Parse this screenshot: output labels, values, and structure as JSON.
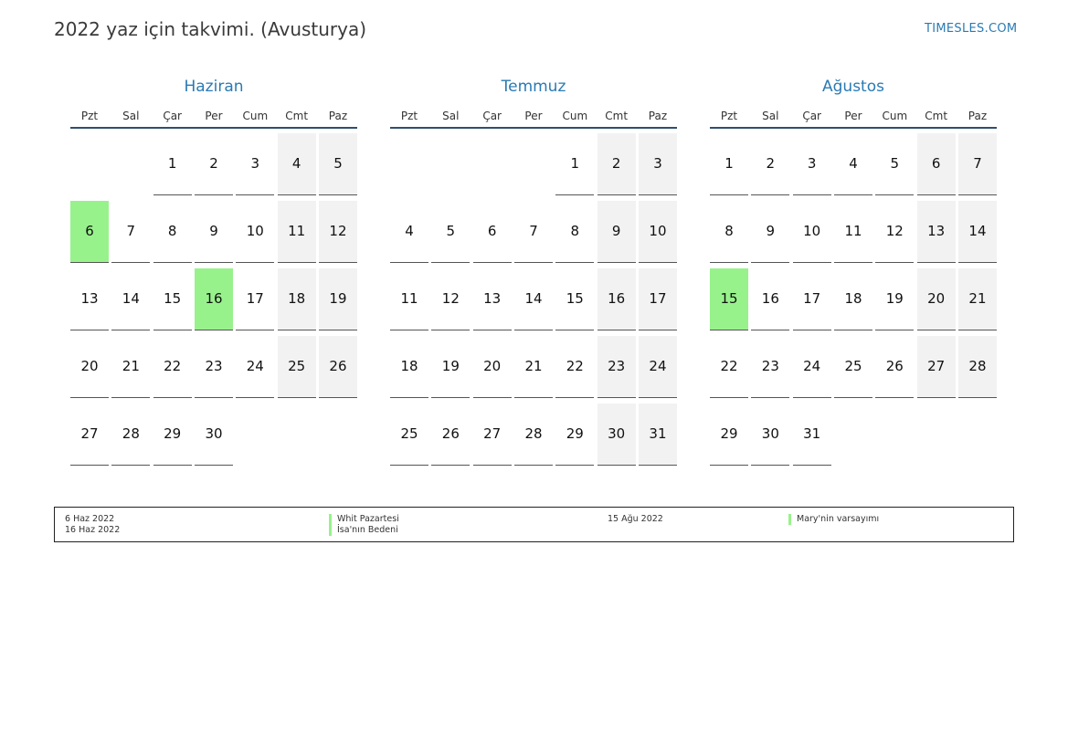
{
  "header": {
    "title": "2022 yaz için takvimi. (Avusturya)",
    "brand": "TIMESLES.COM"
  },
  "colors": {
    "accent": "#2a7ab3",
    "holiday": "#98f28c",
    "weekend": "#f2f2f2",
    "rule": "#2f4f6f"
  },
  "weekdays": [
    "Pzt",
    "Sal",
    "Çar",
    "Per",
    "Cum",
    "Cmt",
    "Paz"
  ],
  "months": [
    {
      "name": "Haziran",
      "start_weekday": 2,
      "days": 30,
      "holidays": [
        6,
        16
      ],
      "day_labels": [
        "1",
        "2",
        "3",
        "4",
        "5",
        "6",
        "7",
        "8",
        "9",
        "10",
        "11",
        "12",
        "13",
        "14",
        "15",
        "16",
        "17",
        "18",
        "19",
        "20",
        "21",
        "22",
        "23",
        "24",
        "25",
        "26",
        "27",
        "28",
        "29",
        "30"
      ]
    },
    {
      "name": "Temmuz",
      "start_weekday": 4,
      "days": 31,
      "holidays": [],
      "day_labels": [
        "1",
        "2",
        "3",
        "4",
        "5",
        "6",
        "7",
        "8",
        "9",
        "10",
        "11",
        "12",
        "13",
        "14",
        "15",
        "16",
        "17",
        "18",
        "19",
        "20",
        "21",
        "22",
        "23",
        "24",
        "25",
        "26",
        "27",
        "28",
        "29",
        "30",
        "31"
      ]
    },
    {
      "name": "Ağustos",
      "start_weekday": 0,
      "days": 31,
      "holidays": [
        15
      ],
      "day_labels": [
        "1",
        "2",
        "3",
        "4",
        "5",
        "6",
        "7",
        "8",
        "9",
        "10",
        "11",
        "12",
        "13",
        "14",
        "15",
        "16",
        "17",
        "18",
        "19",
        "20",
        "21",
        "22",
        "23",
        "24",
        "25",
        "26",
        "27",
        "28",
        "29",
        "30",
        "31"
      ]
    }
  ],
  "legend": {
    "dates_left": [
      "6 Haz 2022",
      "16 Haz 2022"
    ],
    "names_left": [
      "Whit Pazartesi",
      "İsa'nın Bedeni"
    ],
    "dates_right": [
      "15 Ağu 2022"
    ],
    "names_right": [
      "Mary'nin varsayımı"
    ]
  }
}
